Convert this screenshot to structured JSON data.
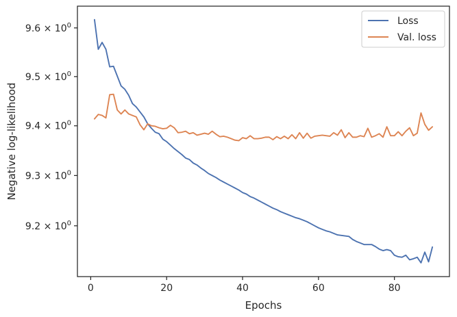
{
  "chart_data": {
    "type": "line",
    "xlabel": "Epochs",
    "ylabel": "Negative log-likelihood",
    "y_scale": "log",
    "xlim": [
      -3.5,
      94.5
    ],
    "ylim": [
      9.1,
      9.645
    ],
    "xticks": [
      {
        "value": 0,
        "label": "0"
      },
      {
        "value": 20,
        "label": "20"
      },
      {
        "value": 40,
        "label": "40"
      },
      {
        "value": 60,
        "label": "60"
      },
      {
        "value": 80,
        "label": "80"
      }
    ],
    "yticks": [
      {
        "value": 9.2,
        "label_mantissa": "9.2",
        "label_times": "×",
        "label_base": "10",
        "label_exp": "0"
      },
      {
        "value": 9.3,
        "label_mantissa": "9.3",
        "label_times": "×",
        "label_base": "10",
        "label_exp": "0"
      },
      {
        "value": 9.4,
        "label_mantissa": "9.4",
        "label_times": "×",
        "label_base": "10",
        "label_exp": "0"
      },
      {
        "value": 9.5,
        "label_mantissa": "9.5",
        "label_times": "×",
        "label_base": "10",
        "label_exp": "0"
      },
      {
        "value": 9.6,
        "label_mantissa": "9.6",
        "label_times": "×",
        "label_base": "10",
        "label_exp": "0"
      }
    ],
    "grid": false,
    "legend_position": "top-right",
    "x": [
      1,
      2,
      3,
      4,
      5,
      6,
      7,
      8,
      9,
      10,
      11,
      12,
      13,
      14,
      15,
      16,
      17,
      18,
      19,
      20,
      21,
      22,
      23,
      24,
      25,
      26,
      27,
      28,
      29,
      30,
      31,
      32,
      33,
      34,
      35,
      36,
      37,
      38,
      39,
      40,
      41,
      42,
      43,
      44,
      45,
      46,
      47,
      48,
      49,
      50,
      51,
      52,
      53,
      54,
      55,
      56,
      57,
      58,
      59,
      60,
      61,
      62,
      63,
      64,
      65,
      66,
      67,
      68,
      69,
      70,
      71,
      72,
      73,
      74,
      75,
      76,
      77,
      78,
      79,
      80,
      81,
      82,
      83,
      84,
      85,
      86,
      87,
      88,
      89,
      90
    ],
    "series": [
      {
        "name": "Loss",
        "color": "#4c72b0",
        "values": [
          9.617,
          9.556,
          9.57,
          9.556,
          9.52,
          9.521,
          9.501,
          9.481,
          9.474,
          9.462,
          9.445,
          9.438,
          9.428,
          9.418,
          9.404,
          9.395,
          9.387,
          9.384,
          9.373,
          9.368,
          9.361,
          9.354,
          9.348,
          9.342,
          9.335,
          9.332,
          9.325,
          9.321,
          9.315,
          9.31,
          9.304,
          9.3,
          9.296,
          9.291,
          9.287,
          9.283,
          9.279,
          9.275,
          9.271,
          9.266,
          9.263,
          9.258,
          9.255,
          9.251,
          9.247,
          9.243,
          9.239,
          9.235,
          9.232,
          9.228,
          9.225,
          9.222,
          9.219,
          9.216,
          9.214,
          9.211,
          9.208,
          9.204,
          9.2,
          9.196,
          9.193,
          9.19,
          9.188,
          9.185,
          9.182,
          9.181,
          9.18,
          9.179,
          9.173,
          9.169,
          9.166,
          9.163,
          9.163,
          9.163,
          9.159,
          9.154,
          9.151,
          9.153,
          9.151,
          9.142,
          9.139,
          9.138,
          9.142,
          9.133,
          9.135,
          9.138,
          9.127,
          9.148,
          9.129,
          9.158
        ]
      },
      {
        "name": "Val. loss",
        "color": "#dd8452",
        "values": [
          9.414,
          9.423,
          9.421,
          9.416,
          9.463,
          9.464,
          9.432,
          9.424,
          9.432,
          9.424,
          9.421,
          9.418,
          9.402,
          9.392,
          9.404,
          9.4,
          9.399,
          9.396,
          9.394,
          9.395,
          9.401,
          9.396,
          9.386,
          9.387,
          9.389,
          9.384,
          9.386,
          9.381,
          9.383,
          9.385,
          9.383,
          9.389,
          9.383,
          9.378,
          9.379,
          9.377,
          9.374,
          9.371,
          9.37,
          9.376,
          9.374,
          9.38,
          9.374,
          9.374,
          9.375,
          9.377,
          9.377,
          9.372,
          9.378,
          9.374,
          9.379,
          9.374,
          9.382,
          9.374,
          9.386,
          9.375,
          9.385,
          9.375,
          9.379,
          9.38,
          9.381,
          9.38,
          9.379,
          9.386,
          9.381,
          9.392,
          9.376,
          9.386,
          9.377,
          9.377,
          9.38,
          9.378,
          9.395,
          9.377,
          9.38,
          9.384,
          9.377,
          9.398,
          9.38,
          9.38,
          9.388,
          9.38,
          9.389,
          9.396,
          9.38,
          9.385,
          9.426,
          9.403,
          9.391,
          9.398
        ]
      }
    ]
  }
}
